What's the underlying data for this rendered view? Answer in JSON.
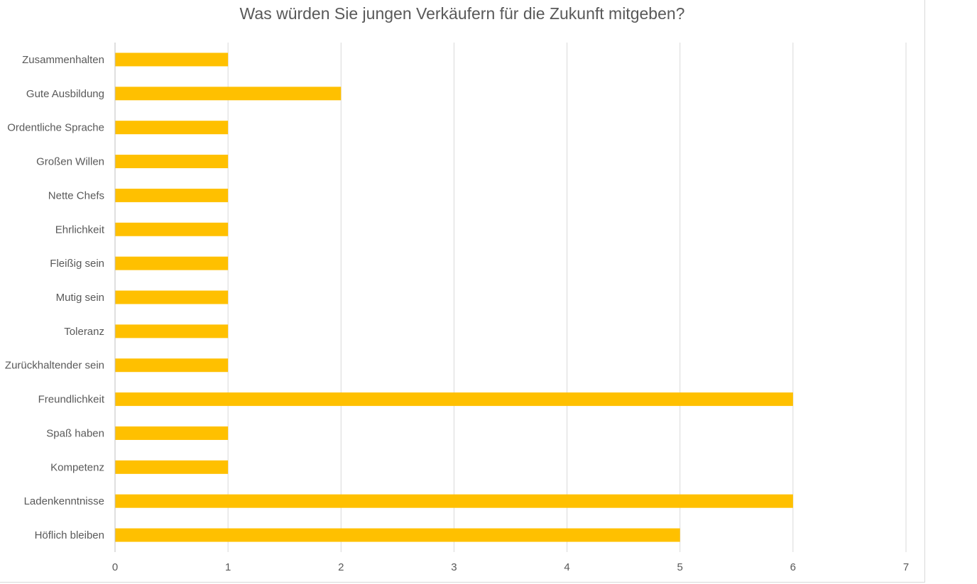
{
  "chart_data": {
    "type": "bar",
    "orientation": "horizontal",
    "title": "Was würden Sie jungen Verkäufern für die Zukunft mitgeben?",
    "xlabel": "",
    "ylabel": "",
    "categories": [
      "Zusammenhalten",
      "Gute Ausbildung",
      "Ordentliche Sprache",
      "Großen Willen",
      "Nette Chefs",
      "Ehrlichkeit",
      "Fleißig sein",
      "Mutig sein",
      "Toleranz",
      "Zurückhaltender sein",
      "Freundlichkeit",
      "Spaß haben",
      "Kompetenz",
      "Ladenkenntnisse",
      "Höflich bleiben"
    ],
    "values": [
      1,
      2,
      1,
      1,
      1,
      1,
      1,
      1,
      1,
      1,
      6,
      1,
      1,
      6,
      5
    ],
    "xlim": [
      0,
      7
    ],
    "xticks": [
      "0",
      "1",
      "2",
      "3",
      "4",
      "5",
      "6",
      "7"
    ],
    "grid": true,
    "legend": "none",
    "colors": {
      "bar": "#FFC000",
      "grid": "#d9d9d9",
      "text": "#595959",
      "axis": "#bfbfbf"
    }
  }
}
